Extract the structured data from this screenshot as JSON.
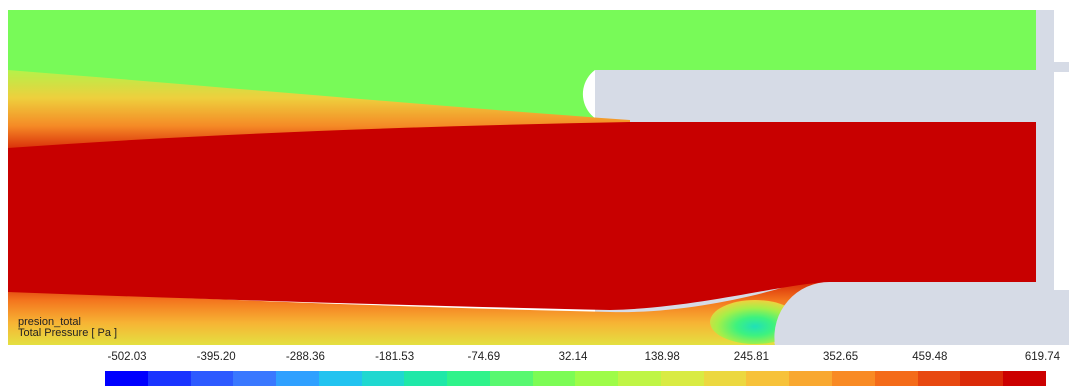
{
  "legend": {
    "variable": "presion_total",
    "quantity": "Total Pressure [ Pa ]",
    "ticks": [
      "-502.03",
      "-395.20",
      "-288.36",
      "-181.53",
      "-74.69",
      "32.14",
      "138.98",
      "245.81",
      "352.65",
      "459.48",
      "619.74"
    ],
    "colors": [
      "#0000ff",
      "#1a34ff",
      "#2d5aff",
      "#3a78ff",
      "#2fa0ff",
      "#22c3f0",
      "#1fd8d0",
      "#1fe8a8",
      "#2ff38a",
      "#58f870",
      "#7cfc55",
      "#9efc48",
      "#bff545",
      "#d9eb43",
      "#ecd840",
      "#f7c23a",
      "#f9a830",
      "#f98a24",
      "#f46b19",
      "#e84810",
      "#db2a08",
      "#cc0000"
    ]
  },
  "field": {
    "upper_plenum_color": "#78fa58",
    "jet_core_color": "#c80000",
    "wall_color": "#d6dbe6"
  }
}
